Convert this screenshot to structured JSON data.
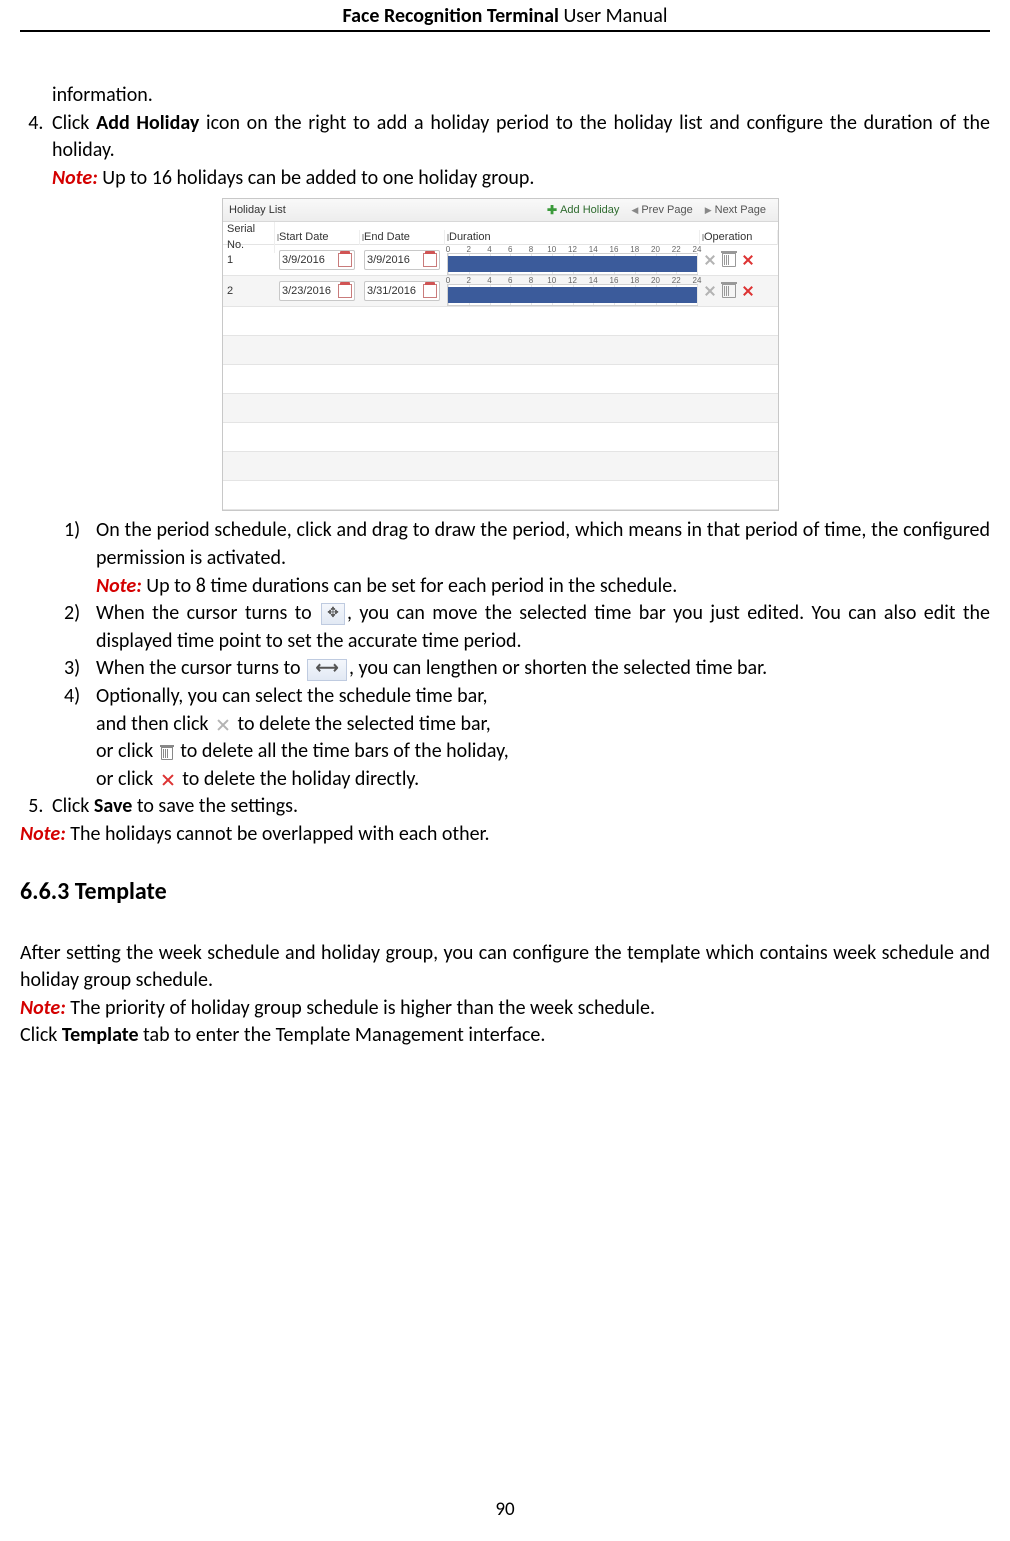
{
  "header": {
    "title_bold": "Face Recognition Terminal",
    "title_rest": "  User Manual"
  },
  "page_number": "90",
  "body": {
    "cont_line": "information.",
    "step4_a": "Click ",
    "step4_b": "Add Holiday",
    "step4_c": " icon on the right to add a holiday period to the holiday list and configure the duration of the holiday.",
    "note1_label": "Note:",
    "note1_text": " Up to 16 holidays can be added to one holiday group.",
    "sub1": "On the period schedule, click and drag to draw the period, which means in that period of time, the configured permission is activated.",
    "sub1_note_label": "Note:",
    "sub1_note_text": " Up to 8 time durations can be set for each period in the schedule.",
    "sub2_a": "When the cursor turns to ",
    "sub2_b": ", you can move the selected time bar you just edited. You can also edit the displayed time point to set the accurate time period.",
    "sub3_a": "When the cursor turns to ",
    "sub3_b": ", you can lengthen or shorten the selected time bar.",
    "sub4_l1": "Optionally, you can select the schedule time bar,",
    "sub4_l2a": "and then click ",
    "sub4_l2b": " to delete the selected time bar,",
    "sub4_l3a": "or click ",
    "sub4_l3b": " to delete all the time bars of the holiday,",
    "sub4_l4a": "or click ",
    "sub4_l4b": " to delete the holiday directly.",
    "step5_a": "Click ",
    "step5_b": "Save",
    "step5_c": " to save the settings.",
    "final_note_label": "Note:",
    "final_note_text": " The holidays cannot be overlapped with each other.",
    "section_heading": "6.6.3   Template",
    "section_p1": "After setting the week schedule and holiday group, you can configure the template which contains week schedule and holiday group schedule.",
    "section_note_label": "Note:",
    "section_note_text": " The priority of holiday group schedule is higher than the week schedule.",
    "section_p2a": "Click ",
    "section_p2b": "Template",
    "section_p2c": " tab to enter the Template Management interface."
  },
  "widget": {
    "title": "Holiday List",
    "add_btn": "Add Holiday",
    "prev_btn": "Prev Page",
    "next_btn": "Next Page",
    "columns": {
      "serial": "Serial No.",
      "start": "Start Date",
      "end": "End Date",
      "duration": "Duration",
      "operation": "Operation"
    },
    "ruler_ticks": [
      "0",
      "2",
      "4",
      "6",
      "8",
      "10",
      "12",
      "14",
      "16",
      "18",
      "20",
      "22",
      "24"
    ],
    "rows": [
      {
        "serial": "1",
        "start": "3/9/2016",
        "end": "3/9/2016",
        "bar_left_pct": 0,
        "bar_width_pct": 100
      },
      {
        "serial": "2",
        "start": "3/23/2016",
        "end": "3/31/2016",
        "bar_left_pct": 0,
        "bar_width_pct": 100
      }
    ],
    "colors": {
      "bar": "#3b5b9b",
      "toolbar_bg_top": "#f9f9f9",
      "toolbar_bg_bottom": "#ededed",
      "border": "#c8c8c8",
      "add_icon": "#3a9a3a",
      "delete_icon": "#d33"
    },
    "empty_rows": 7
  }
}
